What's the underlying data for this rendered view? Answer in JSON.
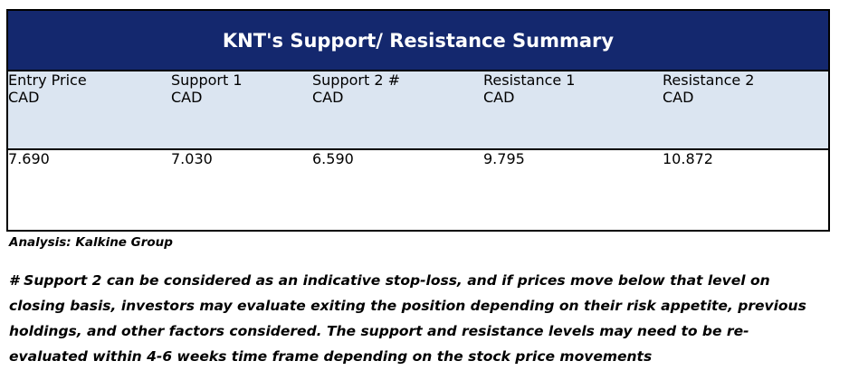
{
  "table": {
    "title": "KNT's Support/  Resistance Summary",
    "headers": [
      [
        "Entry Price",
        "CAD"
      ],
      [
        "Support 1",
        "CAD"
      ],
      [
        "Support 2 #",
        "CAD"
      ],
      [
        "Resistance 1",
        "CAD"
      ],
      [
        "Resistance 2",
        "CAD"
      ]
    ],
    "values": [
      "7.690",
      "7.030",
      "6.590",
      "9.795",
      "10.872"
    ]
  },
  "source": "Analysis: Kalkine Group",
  "note": [
    "# Support 2 can be considered as an indicative stop-loss, and if prices move below that level on",
    "closing basis, investors may evaluate exiting the position depending on their risk appetite, previous",
    "holdings, and other factors considered. The support and resistance levels may need to be re-",
    "evaluated within 4-6 weeks time frame depending on the stock price movements"
  ]
}
